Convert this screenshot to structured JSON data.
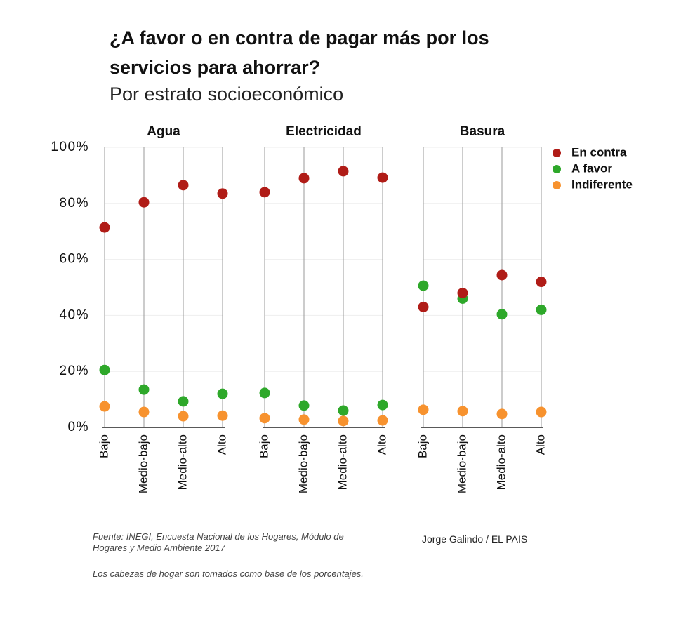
{
  "chart_data": {
    "type": "dot",
    "title": "¿A favor o en contra de pagar más por los servicios para ahorrar?",
    "subtitle": "Por estrato socioeconómico",
    "categories": [
      "Bajo",
      "Medio-bajo",
      "Medio-alto",
      "Alto"
    ],
    "ylim": [
      0,
      100
    ],
    "yticks": [
      {
        "value": 0,
        "label": "0%"
      },
      {
        "value": 20,
        "label": "20%"
      },
      {
        "value": 40,
        "label": "40%"
      },
      {
        "value": 60,
        "label": "60%"
      },
      {
        "value": 80,
        "label": "80%"
      },
      {
        "value": 100,
        "label": "100%"
      }
    ],
    "grid": true,
    "legend": "top-right",
    "series": [
      {
        "name": "En contra",
        "color": "#b01c17"
      },
      {
        "name": "A favor",
        "color": "#2ea82a"
      },
      {
        "name": "Indiferente",
        "color": "#f7922e"
      }
    ],
    "panels": [
      {
        "title": "Agua",
        "series": [
          {
            "values": [
              71.4,
              80.4,
              86.5,
              83.5
            ]
          },
          {
            "values": [
              20.5,
              13.5,
              9.3,
              12
            ]
          },
          {
            "values": [
              7.5,
              5.5,
              4,
              4.2
            ]
          }
        ]
      },
      {
        "title": "Electricidad",
        "series": [
          {
            "values": [
              84,
              89,
              91.5,
              89.2
            ]
          },
          {
            "values": [
              12.3,
              7.8,
              6,
              8
            ]
          },
          {
            "values": [
              3.3,
              2.8,
              2.3,
              2.5
            ]
          }
        ]
      },
      {
        "title": "Basura",
        "series": [
          {
            "values": [
              43,
              48,
              54.4,
              52
            ]
          },
          {
            "values": [
              50.6,
              46,
              40.4,
              42
            ]
          },
          {
            "values": [
              6.3,
              5.8,
              4.8,
              5.5
            ]
          }
        ]
      }
    ],
    "source": "Fuente: INEGI, Encuesta Nacional de los Hogares, Módulo de Hogares y Medio Ambiente 2017",
    "credit": "Jorge Galindo / EL PAIS",
    "note": "Los cabezas de hogar son tomados como base de los porcentajes."
  }
}
